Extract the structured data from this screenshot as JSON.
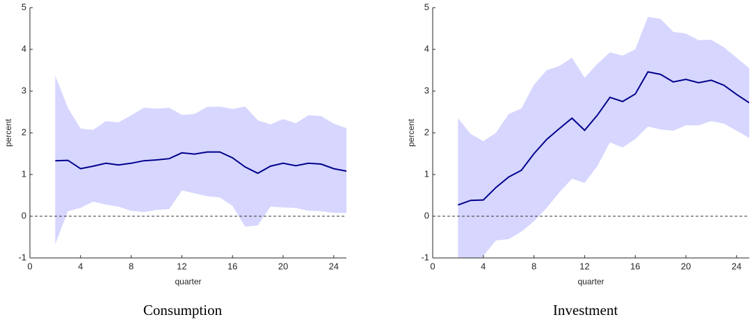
{
  "chart_data": [
    {
      "type": "line",
      "title": "Consumption",
      "x_label": "quarter",
      "y_label": "percent",
      "x": [
        2,
        3,
        4,
        5,
        6,
        7,
        8,
        9,
        10,
        11,
        12,
        13,
        14,
        15,
        16,
        17,
        18,
        19,
        20,
        21,
        22,
        23,
        24,
        25
      ],
      "series": [
        {
          "color": "#00008b",
          "values": [
            1.33,
            1.34,
            1.14,
            1.2,
            1.27,
            1.23,
            1.27,
            1.33,
            1.35,
            1.38,
            1.52,
            1.49,
            1.54,
            1.54,
            1.4,
            1.18,
            1.03,
            1.2,
            1.27,
            1.21,
            1.27,
            1.25,
            1.14,
            1.08
          ]
        }
      ],
      "band": {
        "color": "#d6d6ff",
        "upper": [
          3.37,
          2.6,
          2.1,
          2.07,
          2.28,
          2.25,
          2.42,
          2.6,
          2.58,
          2.6,
          2.43,
          2.45,
          2.62,
          2.63,
          2.57,
          2.63,
          2.3,
          2.2,
          2.33,
          2.23,
          2.42,
          2.4,
          2.22,
          2.11
        ],
        "lower": [
          -0.67,
          0.12,
          0.2,
          0.35,
          0.28,
          0.23,
          0.13,
          0.1,
          0.15,
          0.17,
          0.62,
          0.55,
          0.48,
          0.45,
          0.25,
          -0.25,
          -0.22,
          0.23,
          0.21,
          0.2,
          0.13,
          0.12,
          0.08,
          0.08
        ]
      },
      "hline": 0,
      "xlim": [
        0,
        25
      ],
      "ylim": [
        -1,
        5
      ],
      "xticks": [
        0,
        4,
        8,
        12,
        16,
        20,
        24
      ],
      "yticks": [
        -1,
        0,
        1,
        2,
        3,
        4,
        5
      ]
    },
    {
      "type": "line",
      "title": "Investment",
      "x_label": "quarter",
      "y_label": "percent",
      "x": [
        2,
        3,
        4,
        5,
        6,
        7,
        8,
        9,
        10,
        11,
        12,
        13,
        14,
        15,
        16,
        17,
        18,
        19,
        20,
        21,
        22,
        23,
        24,
        25
      ],
      "series": [
        {
          "color": "#00008b",
          "values": [
            0.27,
            0.38,
            0.39,
            0.69,
            0.94,
            1.1,
            1.5,
            1.84,
            2.1,
            2.35,
            2.06,
            2.42,
            2.85,
            2.75,
            2.93,
            3.46,
            3.4,
            3.22,
            3.28,
            3.2,
            3.26,
            3.14,
            2.92,
            2.72
          ]
        }
      ],
      "band": {
        "color": "#d6d6ff",
        "upper": [
          2.35,
          1.97,
          1.8,
          2.0,
          2.45,
          2.58,
          3.15,
          3.5,
          3.6,
          3.8,
          3.32,
          3.65,
          3.93,
          3.85,
          4.0,
          4.78,
          4.73,
          4.42,
          4.38,
          4.22,
          4.23,
          4.05,
          3.8,
          3.55
        ],
        "lower": [
          -1.8,
          -1.4,
          -0.95,
          -0.58,
          -0.55,
          -0.37,
          -0.12,
          0.2,
          0.57,
          0.9,
          0.8,
          1.2,
          1.77,
          1.65,
          1.85,
          2.15,
          2.08,
          2.05,
          2.18,
          2.18,
          2.28,
          2.22,
          2.05,
          1.88
        ]
      },
      "hline": 0,
      "xlim": [
        0,
        25
      ],
      "ylim": [
        -1,
        5
      ],
      "xticks": [
        0,
        4,
        8,
        12,
        16,
        20,
        24
      ],
      "yticks": [
        -1,
        0,
        1,
        2,
        3,
        4,
        5
      ]
    }
  ]
}
